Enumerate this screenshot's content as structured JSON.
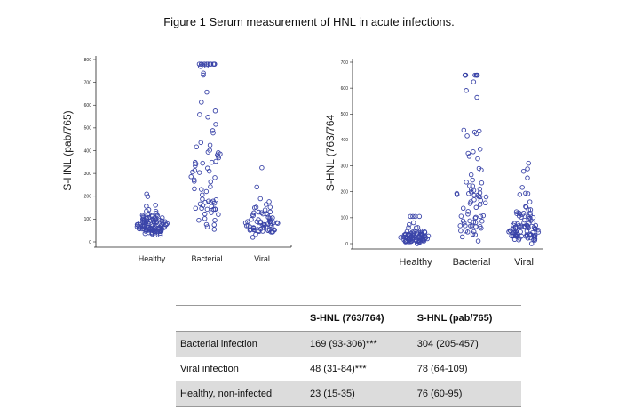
{
  "figure": {
    "title": "Figure 1 Serum measurement of HNL in acute infections."
  },
  "chart_data": [
    {
      "type": "scatter",
      "subtype": "dot-plot",
      "ylabel": "S-HNL (pab/765)",
      "categories": [
        "Healthy",
        "Bacterial",
        "Viral"
      ],
      "ylim": [
        0,
        800
      ],
      "yticks": [
        "0",
        "100",
        "200",
        "300",
        "400",
        "500",
        "600",
        "700",
        "800"
      ],
      "marker_color": "#3a44a8",
      "series": [
        {
          "category": "Healthy",
          "n": 110,
          "median": 76,
          "q1": 60,
          "q3": 95,
          "min": 30,
          "max": 210
        },
        {
          "category": "Bacterial",
          "n": 80,
          "median": 304,
          "q1": 205,
          "q3": 457,
          "min": 55,
          "max": 780
        },
        {
          "category": "Viral",
          "n": 70,
          "median": 78,
          "q1": 64,
          "q3": 109,
          "min": 20,
          "max": 325
        }
      ]
    },
    {
      "type": "scatter",
      "subtype": "dot-plot",
      "ylabel": "S-HNL (763/764",
      "categories": [
        "Healthy",
        "Bacterial",
        "Viral"
      ],
      "ylim": [
        0,
        700
      ],
      "yticks": [
        "0",
        "100",
        "200",
        "300",
        "400",
        "500",
        "600",
        "700"
      ],
      "marker_color": "#3a44a8",
      "series": [
        {
          "category": "Healthy",
          "n": 90,
          "median": 23,
          "q1": 15,
          "q3": 35,
          "min": 0,
          "max": 105
        },
        {
          "category": "Bacterial",
          "n": 80,
          "median": 169,
          "q1": 93,
          "q3": 306,
          "min": 10,
          "max": 650
        },
        {
          "category": "Viral",
          "n": 100,
          "median": 48,
          "q1": 31,
          "q3": 84,
          "min": 0,
          "max": 310
        }
      ]
    }
  ],
  "table": {
    "headers": [
      "",
      "S-HNL (763/764)",
      "S-HNL (pab/765)"
    ],
    "rows": [
      [
        "Bacterial infection",
        "169 (93-306)***",
        "304 (205-457)"
      ],
      [
        "Viral infection",
        "48 (31-84)***",
        "78 (64-109)"
      ],
      [
        "Healthy, non-infected",
        "23 (15-35)",
        "76 (60-95)"
      ]
    ]
  }
}
